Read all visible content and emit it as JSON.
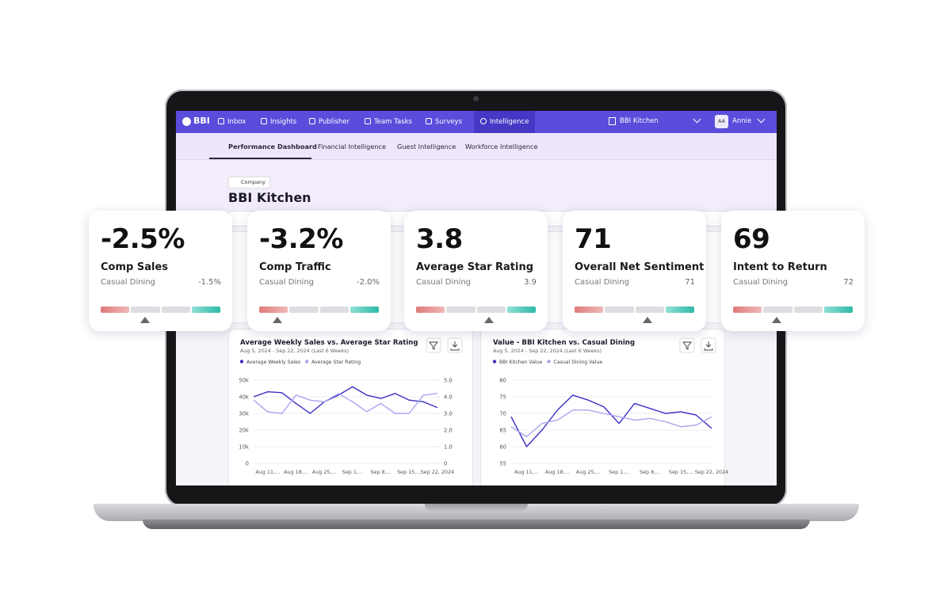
{
  "nav": {
    "brand": "BBI",
    "items": [
      "Inbox",
      "Insights",
      "Publisher",
      "Team Tasks",
      "Surveys",
      "Intelligence"
    ],
    "location": "BBI Kitchen",
    "user_initials": "AA",
    "user_name": "Annie"
  },
  "tabs": [
    "Performance Dashboard",
    "Financial Intelligence",
    "Guest Intelligence",
    "Workforce Intelligence"
  ],
  "header": {
    "badge": "Company",
    "title": "BBI Kitchen"
  },
  "kpis": [
    {
      "value": "-2.5%",
      "label": "Comp Sales",
      "benchmark_label": "Casual Dining",
      "benchmark": "-1.5%"
    },
    {
      "value": "-3.2%",
      "label": "Comp Traffic",
      "benchmark_label": "Casual Dining",
      "benchmark": "-2.0%"
    },
    {
      "value": "3.8",
      "label": "Average Star Rating",
      "benchmark_label": "Casual Dining",
      "benchmark": "3.9"
    },
    {
      "value": "71",
      "label": "Overall Net Sentiment",
      "benchmark_label": "Casual Dining",
      "benchmark": "71"
    },
    {
      "value": "69",
      "label": "Intent to Return",
      "benchmark_label": "Casual Dining",
      "benchmark": "72"
    }
  ],
  "chart_data": [
    {
      "type": "line",
      "title": "Average Weekly Sales vs. Average Star Rating",
      "subtitle": "Aug 5, 2024 - Sep 22, 2024 (Last 6 Weeks)",
      "categories": [
        null,
        "Aug 11,...",
        null,
        "Aug 18,...",
        null,
        "Aug 25,...",
        null,
        "Sep 1,...",
        null,
        "Sep 8,...",
        null,
        "Sep 15,...",
        null,
        "Sep 22, 2024"
      ],
      "series": [
        {
          "name": "Average Weekly Sales",
          "color": "#3a2fc4",
          "values": [
            40000,
            43000,
            42500,
            36000,
            30000,
            37000,
            41000,
            46000,
            41000,
            39000,
            42000,
            38000,
            37000,
            33500
          ]
        },
        {
          "name": "Average Star Rating",
          "color": "#a9a5f1",
          "axis": "y2",
          "values": [
            3.8,
            3.1,
            3.0,
            4.1,
            3.8,
            3.7,
            4.2,
            3.7,
            3.1,
            3.6,
            3.0,
            3.0,
            4.1,
            4.2
          ]
        }
      ],
      "ylim": [
        0,
        50000
      ],
      "yticks": [
        0,
        {
          "value": 10000,
          "label": "10k"
        },
        {
          "value": 20000,
          "label": "20k"
        },
        {
          "value": 30000,
          "label": "30k"
        },
        {
          "value": 40000,
          "label": "40k"
        },
        {
          "value": 50000,
          "label": "50k"
        }
      ],
      "y2lim": [
        0,
        5
      ],
      "y2ticks": [
        0,
        {
          "value": 1,
          "label": "1.0"
        },
        {
          "value": 2,
          "label": "2.0"
        },
        {
          "value": 3,
          "label": "3.0"
        },
        {
          "value": 4,
          "label": "4.0"
        },
        {
          "value": 5,
          "label": "5.0"
        }
      ],
      "grid": true
    },
    {
      "type": "line",
      "title": "Value - BBI Kitchen vs. Casual Dining",
      "subtitle": "Aug 5, 2024 - Sep 22, 2024 (Last 6 Weeks)",
      "categories": [
        null,
        "Aug 11,...",
        null,
        "Aug 18,...",
        null,
        "Aug 25,...",
        null,
        "Sep 1,...",
        null,
        "Sep 8,...",
        null,
        "Sep 15,...",
        null,
        "Sep 22, 2024"
      ],
      "series": [
        {
          "name": "BBI Kitchen Value",
          "color": "#3a2fc4",
          "values": [
            69,
            60,
            65,
            71,
            75.5,
            74,
            72,
            67,
            73,
            71.5,
            70,
            70.5,
            69.5,
            65.5
          ]
        },
        {
          "name": "Casual Dining Value",
          "color": "#a9a5f1",
          "values": [
            66,
            63,
            67,
            68,
            71,
            71,
            70,
            69,
            68,
            68.5,
            67.5,
            66,
            66.5,
            69
          ]
        }
      ],
      "ylim": [
        55,
        80
      ],
      "yticks": [
        55,
        60,
        65,
        70,
        75,
        80
      ],
      "grid": true
    }
  ]
}
